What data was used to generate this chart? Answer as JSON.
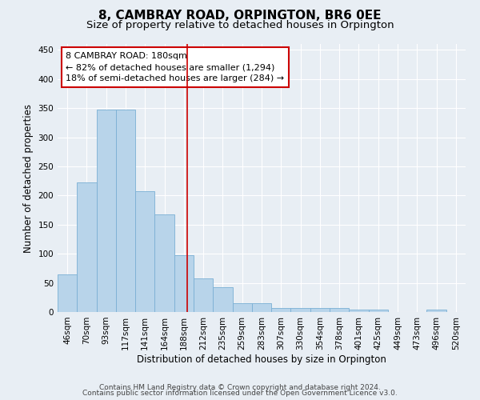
{
  "title": "8, CAMBRAY ROAD, ORPINGTON, BR6 0EE",
  "subtitle": "Size of property relative to detached houses in Orpington",
  "xlabel": "Distribution of detached houses by size in Orpington",
  "ylabel": "Number of detached properties",
  "bin_labels": [
    "46sqm",
    "70sqm",
    "93sqm",
    "117sqm",
    "141sqm",
    "164sqm",
    "188sqm",
    "212sqm",
    "235sqm",
    "259sqm",
    "283sqm",
    "307sqm",
    "330sqm",
    "354sqm",
    "378sqm",
    "401sqm",
    "425sqm",
    "449sqm",
    "473sqm",
    "496sqm",
    "520sqm"
  ],
  "bar_values": [
    65,
    223,
    348,
    348,
    208,
    168,
    98,
    57,
    42,
    15,
    15,
    7,
    7,
    7,
    7,
    4,
    4,
    0,
    0,
    4,
    0
  ],
  "bar_color": "#b8d4ea",
  "bar_edgecolor": "#7aafd4",
  "vline_color": "#cc0000",
  "annotation_text": "8 CAMBRAY ROAD: 180sqm\n← 82% of detached houses are smaller (1,294)\n18% of semi-detached houses are larger (284) →",
  "annotation_box_color": "#ffffff",
  "annotation_box_edgecolor": "#cc0000",
  "ylim": [
    0,
    460
  ],
  "yticks": [
    0,
    50,
    100,
    150,
    200,
    250,
    300,
    350,
    400,
    450
  ],
  "footer1": "Contains HM Land Registry data © Crown copyright and database right 2024.",
  "footer2": "Contains public sector information licensed under the Open Government Licence v3.0.",
  "background_color": "#e8eef4",
  "grid_color": "#ffffff",
  "title_fontsize": 11,
  "subtitle_fontsize": 9.5,
  "axis_label_fontsize": 8.5,
  "tick_fontsize": 7.5,
  "footer_fontsize": 6.5
}
